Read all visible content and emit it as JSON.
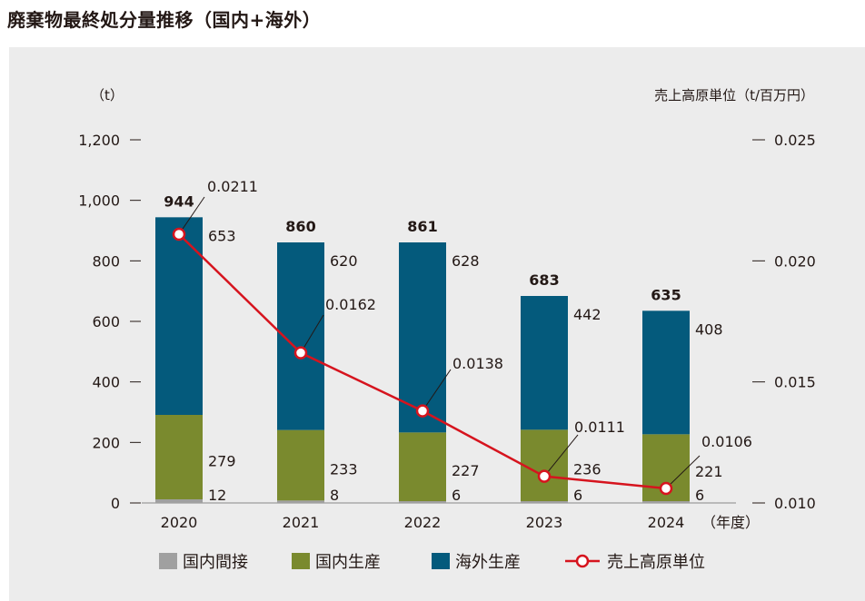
{
  "page": {
    "title": "廃棄物最終処分量推移（国内+海外）"
  },
  "chart_data": {
    "type": "bar",
    "stacked": true,
    "categories": [
      "2020",
      "2021",
      "2022",
      "2023",
      "2024"
    ],
    "x_unit": "（年度）",
    "series": [
      {
        "name": "国内間接",
        "values": [
          12,
          8,
          6,
          6,
          6
        ],
        "color": "#a0a0a0"
      },
      {
        "name": "国内生産",
        "values": [
          279,
          233,
          227,
          236,
          221
        ],
        "color": "#7a8a2e"
      },
      {
        "name": "海外生産",
        "values": [
          653,
          620,
          628,
          442,
          408
        ],
        "color": "#045a7c"
      }
    ],
    "totals": [
      944,
      860,
      861,
      683,
      635
    ],
    "line_series": {
      "name": "売上高原単位",
      "values": [
        0.0211,
        0.0162,
        0.0138,
        0.0111,
        0.0106
      ],
      "value_labels": [
        "0.0211",
        "0.0162",
        "0.0138",
        "0.0111",
        "0.0106"
      ],
      "color": "#d6141e",
      "axis": "right"
    },
    "y_left": {
      "label": "（t）",
      "ylim": [
        0,
        1200
      ],
      "ticks": [
        0,
        200,
        400,
        600,
        800,
        1000,
        1200
      ],
      "tick_labels": [
        "0",
        "200",
        "400",
        "600",
        "800",
        "1,000",
        "1,200"
      ]
    },
    "y_right": {
      "label": "売上高原単位（t/百万円）",
      "ylim": [
        0.01,
        0.025
      ],
      "ticks": [
        0.01,
        0.015,
        0.02,
        0.025
      ],
      "tick_labels": [
        "0.010",
        "0.015",
        "0.020",
        "0.025"
      ]
    },
    "grid": false,
    "legend_position": "bottom"
  }
}
